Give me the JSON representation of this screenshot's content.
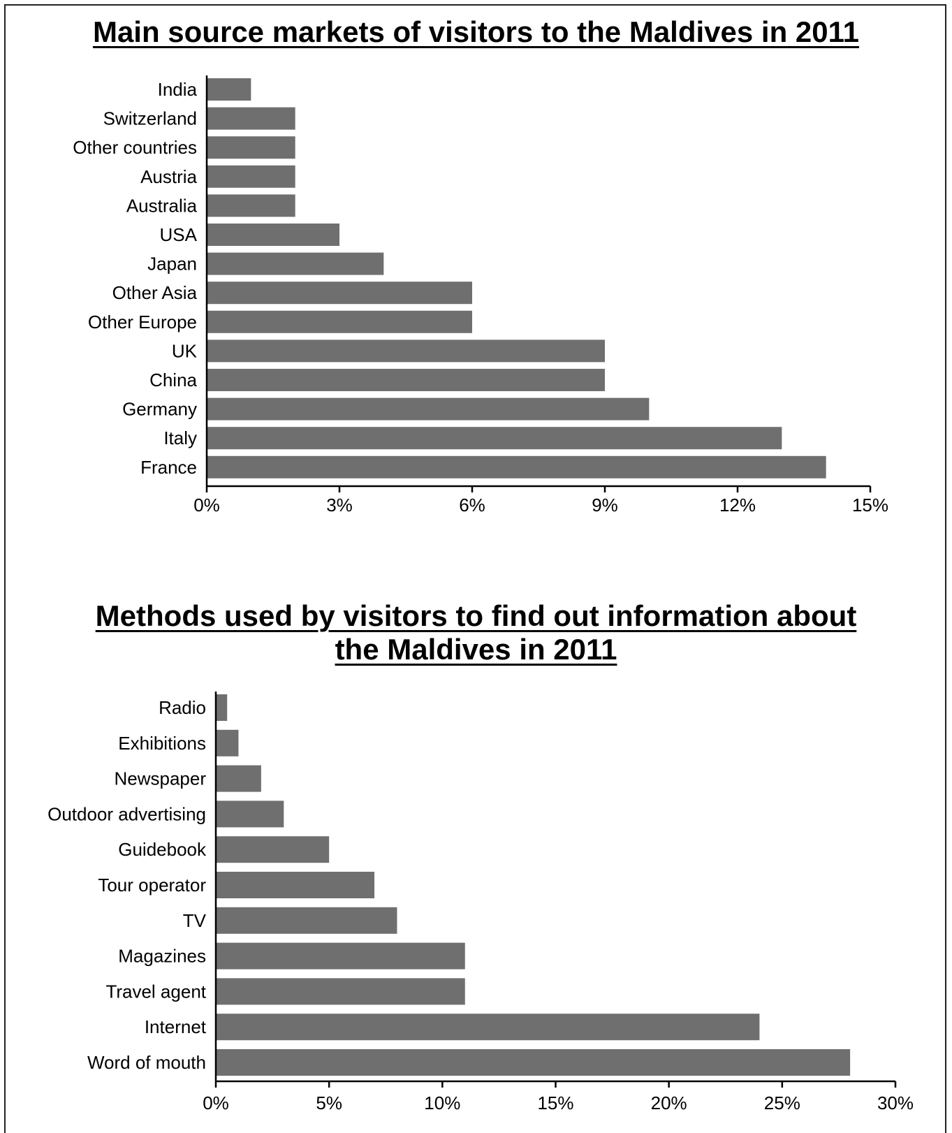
{
  "chart_data": [
    {
      "type": "bar",
      "orientation": "horizontal",
      "title": "Main source markets of visitors to the Maldives in 2011",
      "categories": [
        "India",
        "Switzerland",
        "Other countries",
        "Austria",
        "Australia",
        "USA",
        "Japan",
        "Other Asia",
        "Other Europe",
        "UK",
        "China",
        "Germany",
        "Italy",
        "France"
      ],
      "values": [
        1,
        2,
        2,
        2,
        2,
        3,
        4,
        6,
        6,
        9,
        9,
        10,
        13,
        14
      ],
      "xlim": [
        0,
        15
      ],
      "ticks": [
        "0%",
        "3%",
        "6%",
        "9%",
        "12%",
        "15%"
      ],
      "grid": false,
      "bar_color": "#6f6f6f"
    },
    {
      "type": "bar",
      "orientation": "horizontal",
      "title": "Methods used by visitors to find out information about the Maldives in 2011",
      "categories": [
        "Radio",
        "Exhibitions",
        "Newspaper",
        "Outdoor advertising",
        "Guidebook",
        "Tour operator",
        "TV",
        "Magazines",
        "Travel agent",
        "Internet",
        "Word of mouth"
      ],
      "values": [
        0.5,
        1,
        2,
        3,
        5,
        7,
        8,
        11,
        11,
        24,
        28
      ],
      "xlim": [
        0,
        30
      ],
      "ticks": [
        "0%",
        "5%",
        "10%",
        "15%",
        "20%",
        "25%",
        "30%"
      ],
      "grid": false,
      "bar_color": "#6f6f6f"
    }
  ]
}
